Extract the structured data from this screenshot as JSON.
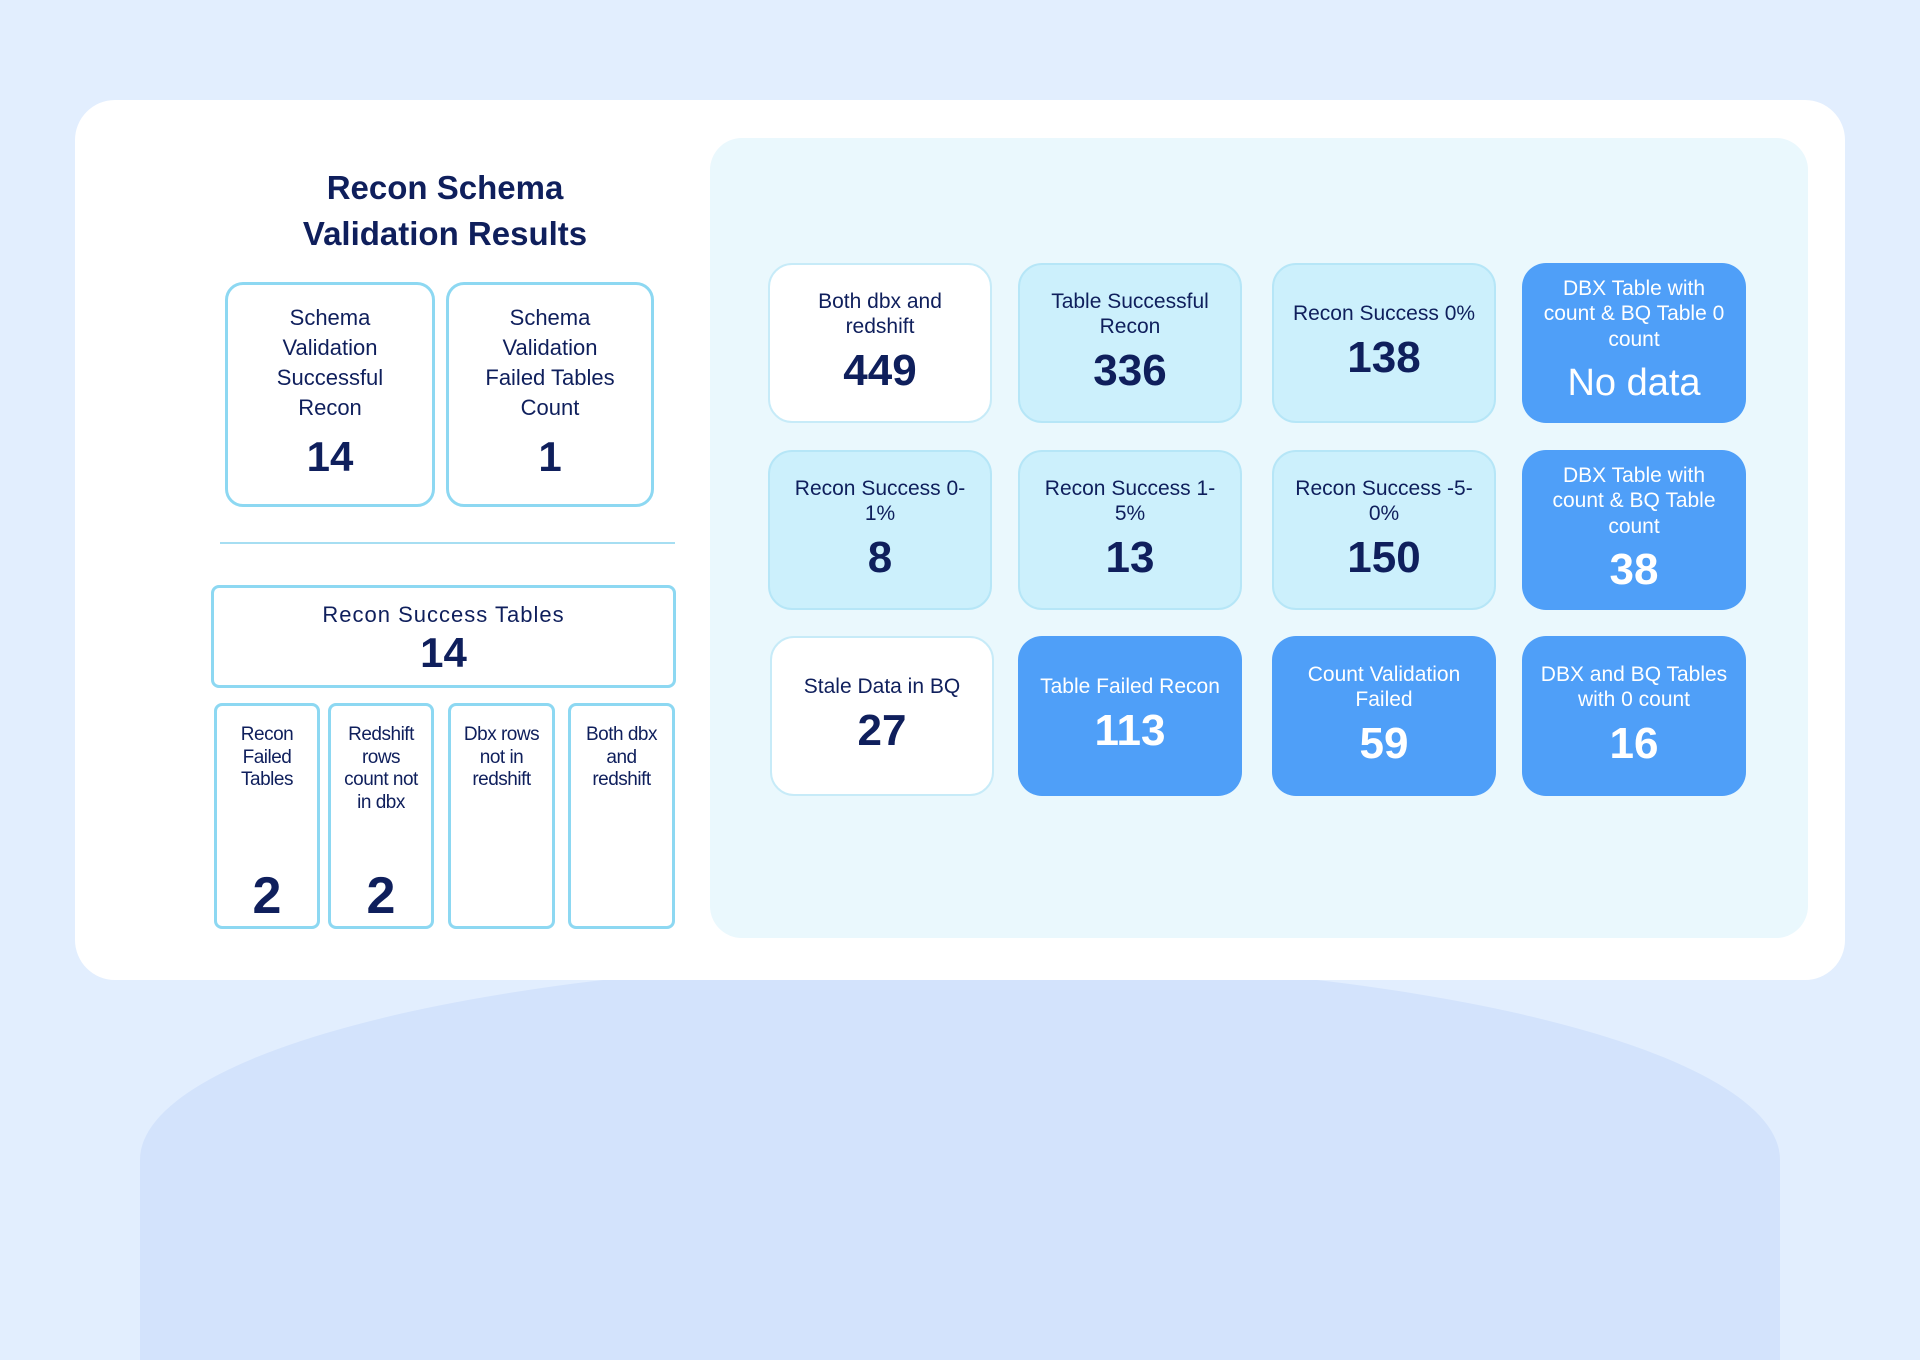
{
  "title": {
    "line1": "Recon Schema",
    "line2": "Validation Results"
  },
  "schema_success": {
    "label": "Schema Validation Successful Recon",
    "value": "14"
  },
  "schema_failed": {
    "label": "Schema Validation Failed Tables Count",
    "value": "1"
  },
  "recon_success_tables": {
    "label": "Recon Success Tables",
    "value": "14"
  },
  "sub_boxes": [
    {
      "label": "Recon Failed Tables",
      "value": "2"
    },
    {
      "label": "Redshift rows count not in dbx",
      "value": "2"
    },
    {
      "label": "Dbx rows not in redshift",
      "value": ""
    },
    {
      "label": "Both dbx and redshift",
      "value": ""
    }
  ],
  "tiles": [
    {
      "label": "Both dbx and redshift",
      "value": "449"
    },
    {
      "label": "Table Successful Recon",
      "value": "336"
    },
    {
      "label": "Recon Success 0%",
      "value": "138"
    },
    {
      "label": "DBX Table with count & BQ Table 0 count",
      "value": "No data"
    },
    {
      "label": "Recon Success 0-1%",
      "value": "8"
    },
    {
      "label": "Recon Success 1-5%",
      "value": "13"
    },
    {
      "label": "Recon Success -5-0%",
      "value": "150"
    },
    {
      "label": "DBX Table with count & BQ Table count",
      "value": "38"
    },
    {
      "label": "Stale Data in BQ",
      "value": "27"
    },
    {
      "label": "Table Failed Recon",
      "value": "113"
    },
    {
      "label": "Count Validation Failed",
      "value": "59"
    },
    {
      "label": "DBX and BQ Tables with 0 count",
      "value": "16"
    }
  ],
  "colors": {
    "navy": "#0f1f5c",
    "accent_blue": "#4f9ff8",
    "light_cyan": "#ccf0fc",
    "border_cyan": "#8dd8f2"
  }
}
